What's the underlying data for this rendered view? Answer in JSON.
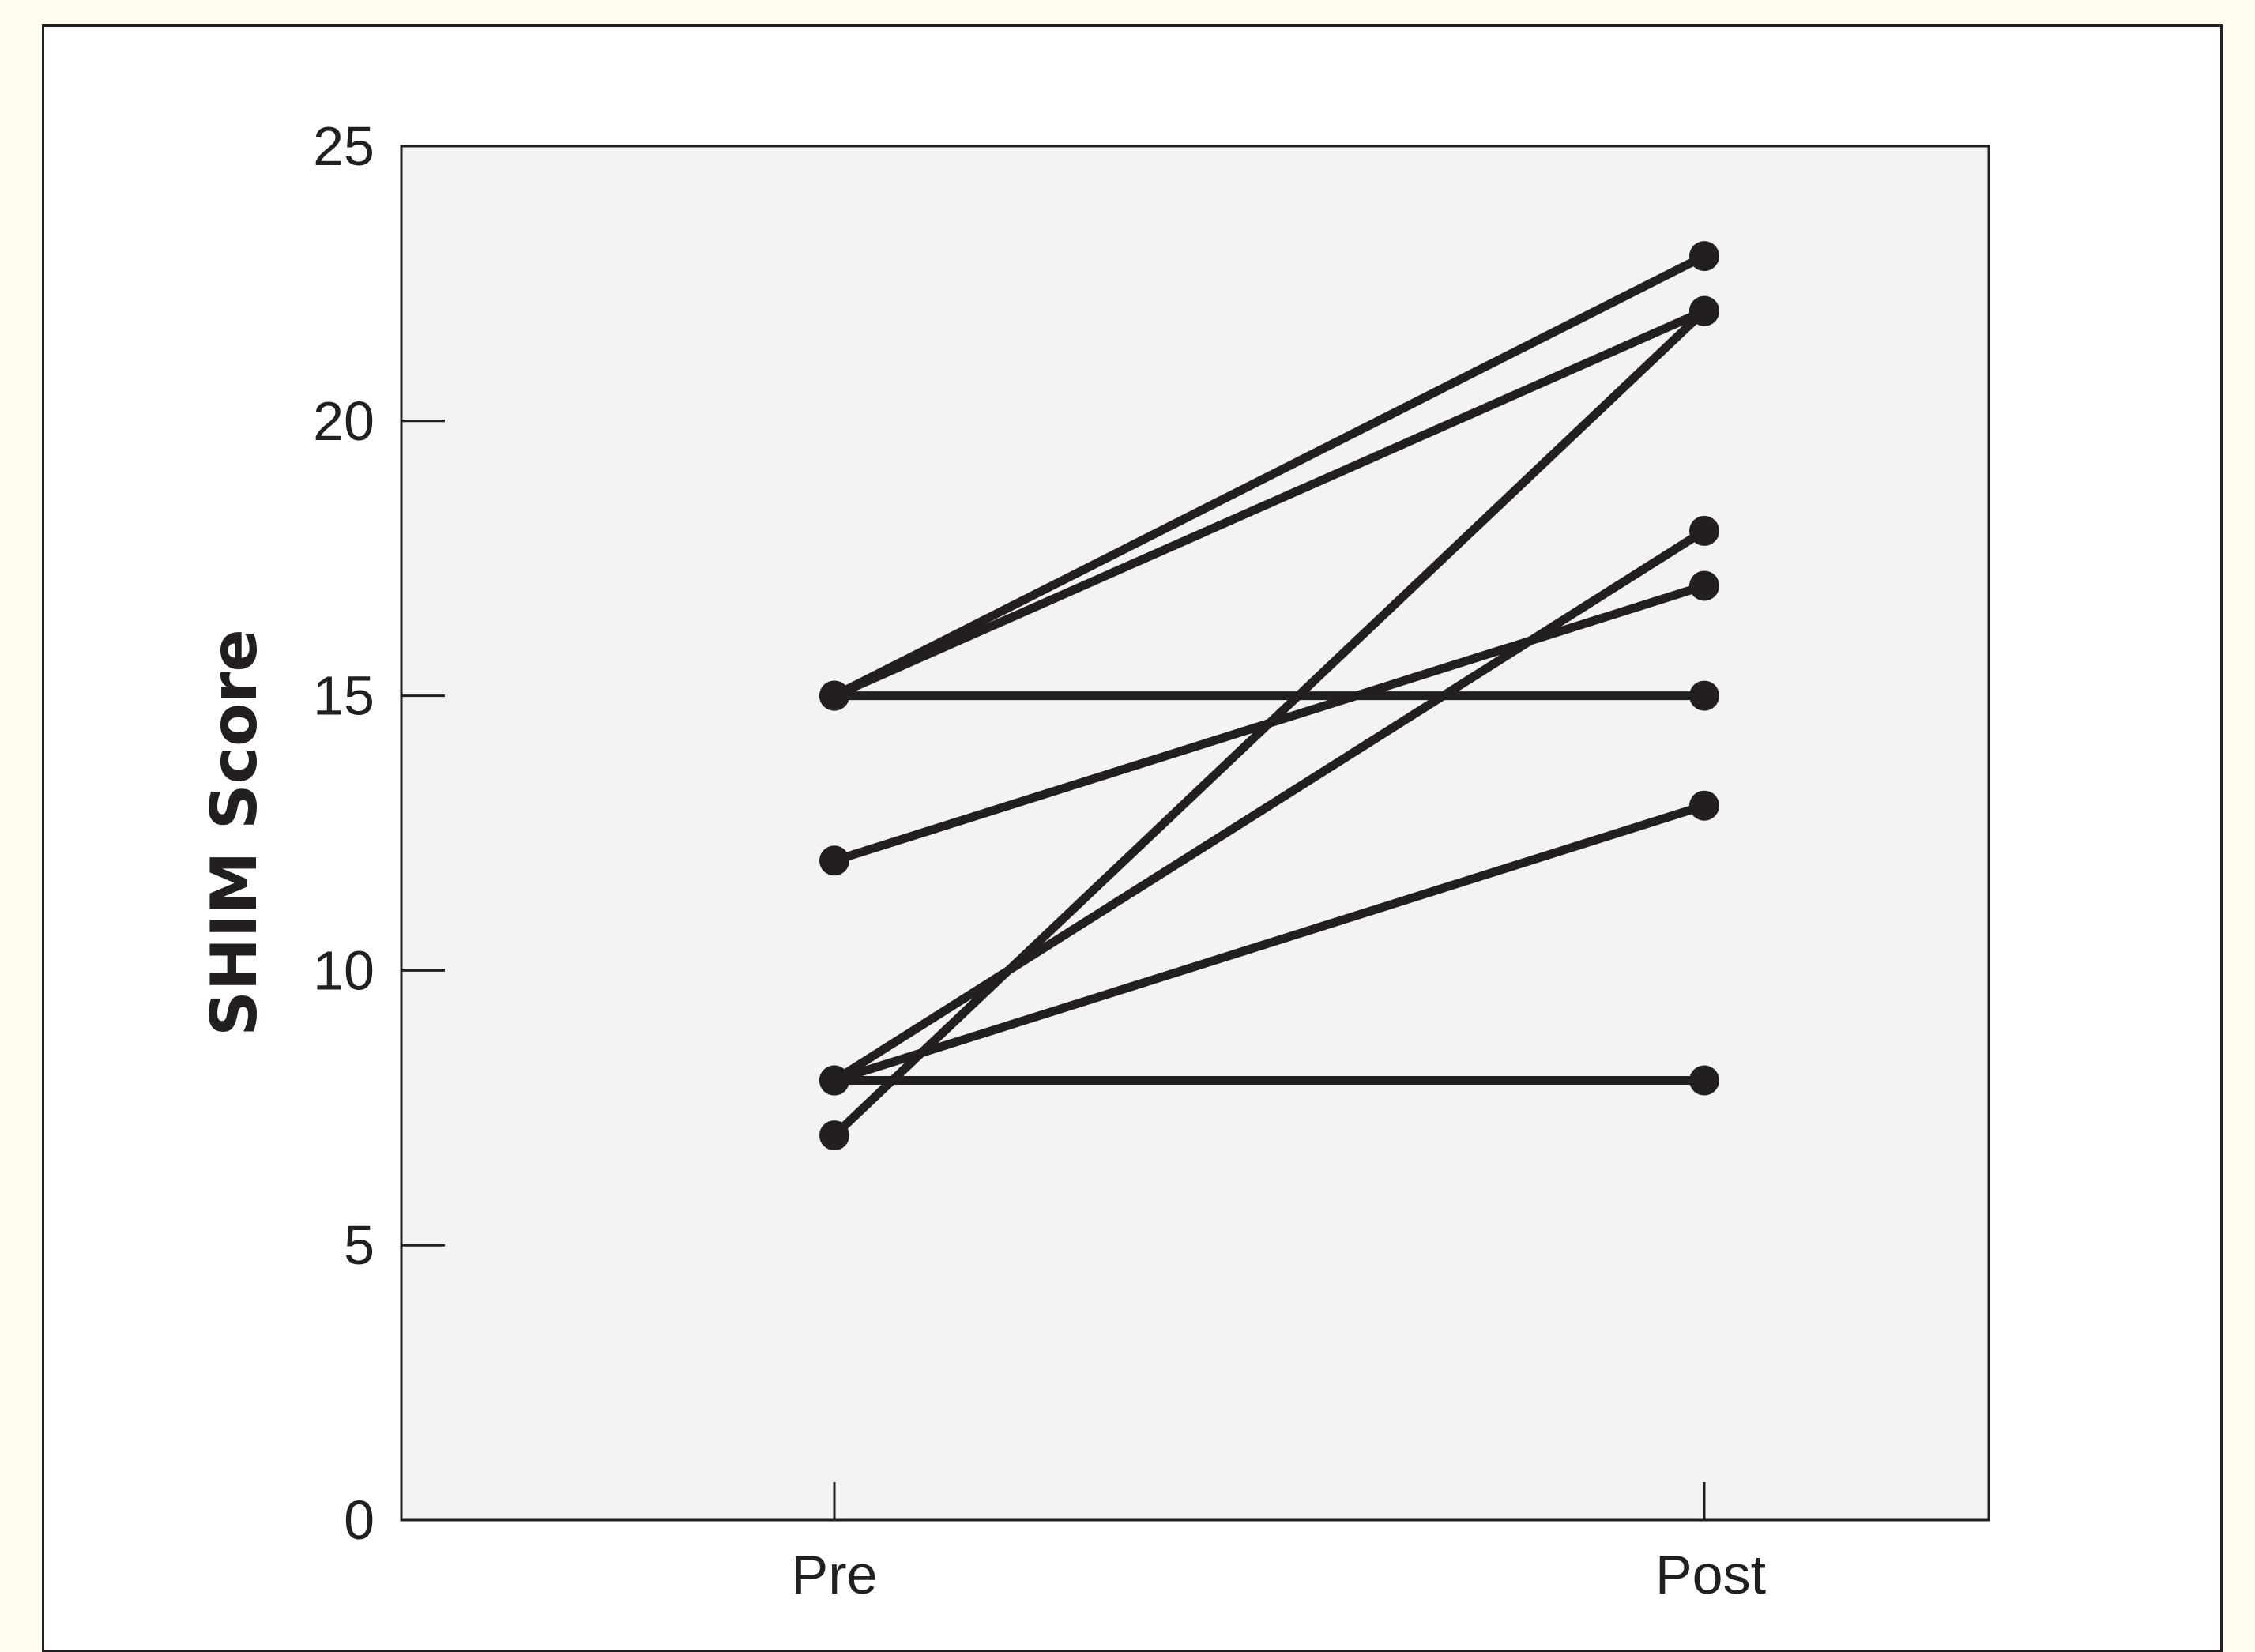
{
  "chart_data": {
    "type": "line",
    "title": "",
    "xlabel": "",
    "ylabel": "SHIM Score",
    "categories": [
      "Pre",
      "Post"
    ],
    "ylim": [
      0,
      25
    ],
    "yticks": [
      0,
      5,
      10,
      15,
      20,
      25
    ],
    "grid": false,
    "legend": "none",
    "series": [
      {
        "values": [
          15,
          23
        ]
      },
      {
        "values": [
          15,
          22
        ]
      },
      {
        "values": [
          15,
          15
        ]
      },
      {
        "values": [
          12,
          17
        ]
      },
      {
        "values": [
          8,
          18
        ]
      },
      {
        "values": [
          8,
          13
        ]
      },
      {
        "values": [
          8,
          8
        ]
      },
      {
        "values": [
          7,
          22
        ]
      }
    ],
    "colors": {
      "line": "#231f20",
      "plot_background": "#f3f3f3",
      "page_background": "#fffdef"
    }
  }
}
